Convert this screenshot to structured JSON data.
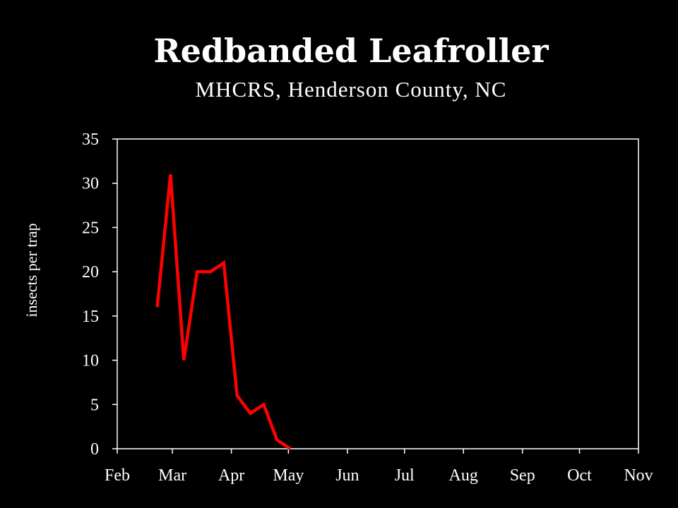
{
  "chart_data": {
    "type": "line",
    "title": "Redbanded Leafroller",
    "subtitle": "MHCRS, Henderson County, NC",
    "xlabel": "",
    "ylabel": "insects per trap",
    "x_tick_labels": [
      "Feb",
      "Mar",
      "Apr",
      "May",
      "Jun",
      "Jul",
      "Aug",
      "Sep",
      "Oct",
      "Nov"
    ],
    "y_tick_labels": [
      "0",
      "5",
      "10",
      "15",
      "20",
      "25",
      "30",
      "35"
    ],
    "ylim": [
      0,
      35
    ],
    "grid": false,
    "legend": "none",
    "series": [
      {
        "color": "#ff0000",
        "points": [
          {
            "date": "Feb 22",
            "value": 16
          },
          {
            "date": "Feb 29",
            "value": 31
          },
          {
            "date": "Mar 7",
            "value": 10
          },
          {
            "date": "Mar 14",
            "value": 20
          },
          {
            "date": "Mar 21",
            "value": 20
          },
          {
            "date": "Mar 28",
            "value": 21
          },
          {
            "date": "Apr 4",
            "value": 6
          },
          {
            "date": "Apr 11",
            "value": 4
          },
          {
            "date": "Apr 18",
            "value": 5
          },
          {
            "date": "Apr 25",
            "value": 1
          },
          {
            "date": "May 2",
            "value": 0
          }
        ]
      }
    ]
  },
  "colors": {
    "background": "#000000",
    "axis": "#ffffff",
    "text": "#ffffff"
  }
}
